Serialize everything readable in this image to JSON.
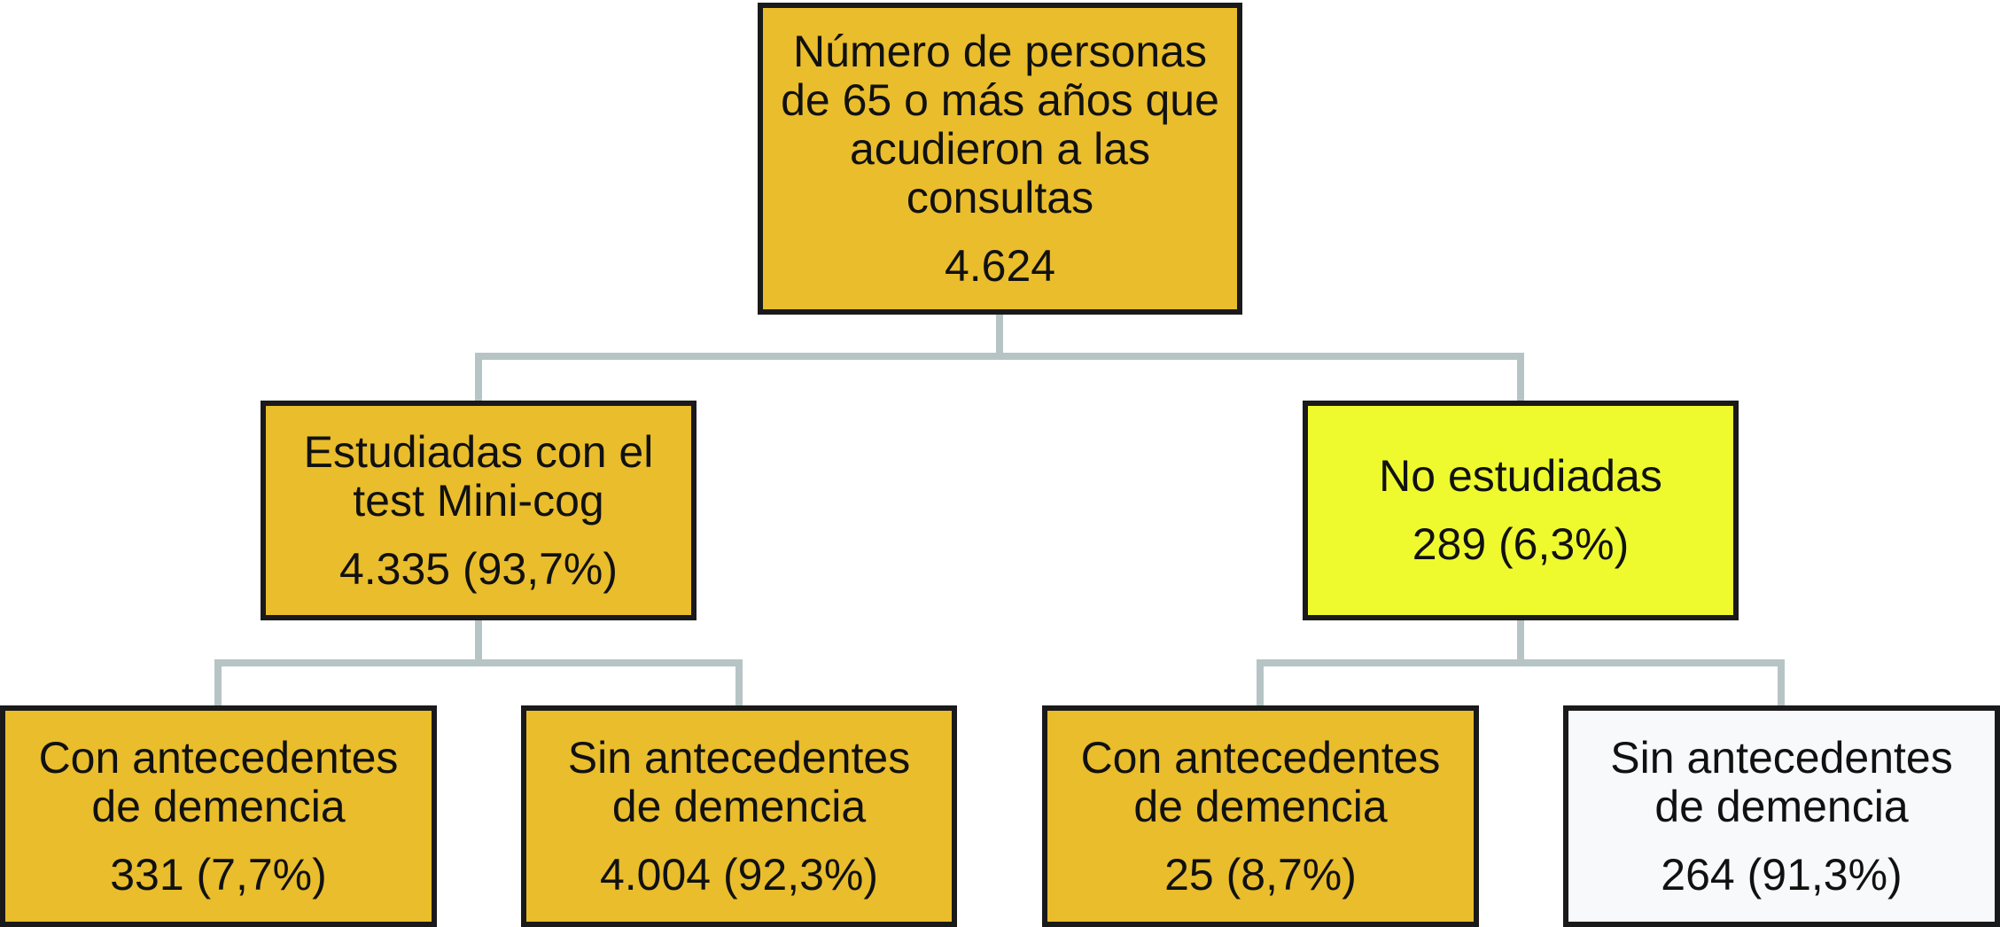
{
  "colors": {
    "orange": "#e9bd2c",
    "yellow": "#eefa2e",
    "white": "#f8f9fb",
    "connector": "#b7c4c6",
    "border": "#1a1a1a"
  },
  "nodes": {
    "root": {
      "label": "Número de personas\nde 65 o más años que\nacudieron a las\nconsultas",
      "value": "4.624",
      "color": "orange"
    },
    "studied": {
      "label": "Estudiadas con el\ntest Mini-cog",
      "value": "4.335 (93,7%)",
      "color": "orange"
    },
    "unstudied": {
      "label": "No estudiadas",
      "value": "289 (6,3%)",
      "color": "yellow"
    },
    "studied_with": {
      "label": "Con antecedentes\nde demencia",
      "value": "331 (7,7%)",
      "color": "orange"
    },
    "studied_without": {
      "label": "Sin antecedentes\nde demencia",
      "value": "4.004 (92,3%)",
      "color": "orange"
    },
    "unstudied_with": {
      "label": "Con antecedentes\nde demencia",
      "value": "25 (8,7%)",
      "color": "orange"
    },
    "unstudied_without": {
      "label": "Sin antecedentes\nde demencia",
      "value": "264 (91,3%)",
      "color": "white"
    }
  }
}
